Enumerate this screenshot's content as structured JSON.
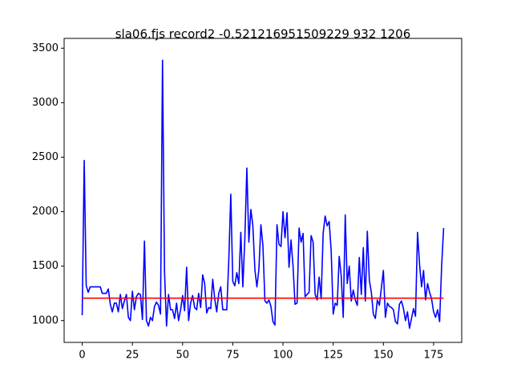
{
  "chart_data": {
    "type": "line",
    "title": "sla06.fjs record2 -0.521216951509229 932 1206",
    "x": [
      0,
      1,
      2,
      3,
      4,
      5,
      6,
      7,
      8,
      9,
      10,
      11,
      12,
      13,
      14,
      15,
      16,
      17,
      18,
      19,
      20,
      21,
      22,
      23,
      24,
      25,
      26,
      27,
      28,
      29,
      30,
      31,
      32,
      33,
      34,
      35,
      36,
      37,
      38,
      39,
      40,
      41,
      42,
      43,
      44,
      45,
      46,
      47,
      48,
      49,
      50,
      51,
      52,
      53,
      54,
      55,
      56,
      57,
      58,
      59,
      60,
      61,
      62,
      63,
      64,
      65,
      66,
      67,
      68,
      69,
      70,
      71,
      72,
      73,
      74,
      75,
      76,
      77,
      78,
      79,
      80,
      81,
      82,
      83,
      84,
      85,
      86,
      87,
      88,
      89,
      90,
      91,
      92,
      93,
      94,
      95,
      96,
      97,
      98,
      99,
      100,
      101,
      102,
      103,
      104,
      105,
      106,
      107,
      108,
      109,
      110,
      111,
      112,
      113,
      114,
      115,
      116,
      117,
      118,
      119,
      120,
      121,
      122,
      123,
      124,
      125,
      126,
      127,
      128,
      129,
      130,
      131,
      132,
      133,
      134,
      135,
      136,
      137,
      138,
      139,
      140,
      141,
      142,
      143,
      144,
      145,
      146,
      147,
      148,
      149,
      150,
      151,
      152,
      153,
      154,
      155,
      156,
      157,
      158,
      159,
      160,
      161,
      162,
      163,
      164,
      165,
      166,
      167,
      168,
      169,
      170,
      171,
      172,
      173,
      174,
      175,
      176,
      177,
      178,
      179,
      180
    ],
    "series": [
      {
        "color": "#0000ff",
        "values": [
          1050,
          2470,
          1320,
          1260,
          1310,
          1310,
          1310,
          1310,
          1310,
          1310,
          1250,
          1250,
          1250,
          1290,
          1150,
          1080,
          1160,
          1160,
          1080,
          1240,
          1110,
          1180,
          1240,
          1030,
          1000,
          1270,
          1100,
          1220,
          1250,
          1240,
          1010,
          1730,
          1000,
          950,
          1030,
          1000,
          1130,
          1170,
          1140,
          1060,
          3390,
          1450,
          950,
          1240,
          1100,
          1100,
          1020,
          1160,
          1000,
          1100,
          1230,
          1090,
          1490,
          1000,
          1160,
          1230,
          1120,
          1100,
          1250,
          1120,
          1420,
          1340,
          1070,
          1120,
          1110,
          1380,
          1200,
          1080,
          1250,
          1310,
          1100,
          1100,
          1100,
          1550,
          2160,
          1360,
          1320,
          1440,
          1340,
          1810,
          1310,
          1750,
          2400,
          1720,
          2020,
          1870,
          1470,
          1310,
          1470,
          1880,
          1690,
          1180,
          1160,
          1190,
          1130,
          990,
          960,
          1880,
          1700,
          1680,
          2000,
          1760,
          1990,
          1490,
          1740,
          1500,
          1150,
          1160,
          1850,
          1720,
          1800,
          1220,
          1240,
          1260,
          1780,
          1720,
          1240,
          1190,
          1400,
          1200,
          1800,
          1960,
          1870,
          1910,
          1640,
          1060,
          1160,
          1140,
          1590,
          1410,
          1030,
          1970,
          1340,
          1500,
          1180,
          1280,
          1190,
          1140,
          1580,
          1240,
          1670,
          1180,
          1820,
          1370,
          1260,
          1060,
          1020,
          1190,
          1140,
          1300,
          1460,
          1030,
          1160,
          1130,
          1120,
          1100,
          990,
          970,
          1150,
          1180,
          1110,
          1000,
          1080,
          930,
          1020,
          1110,
          1040,
          1810,
          1520,
          1310,
          1460,
          1190,
          1340,
          1260,
          1200,
          1080,
          1030,
          1100,
          990,
          1500,
          1850
        ]
      }
    ],
    "reference_line": {
      "y": 1206,
      "xmin": 0,
      "xmax": 180,
      "color": "#ff0000"
    },
    "xlim": [
      -9,
      189
    ],
    "ylim": [
      800,
      3590
    ],
    "xticks": [
      0,
      25,
      50,
      75,
      100,
      125,
      150,
      175
    ],
    "yticks": [
      1000,
      1500,
      2000,
      2500,
      3000,
      3500
    ],
    "grid": false
  }
}
